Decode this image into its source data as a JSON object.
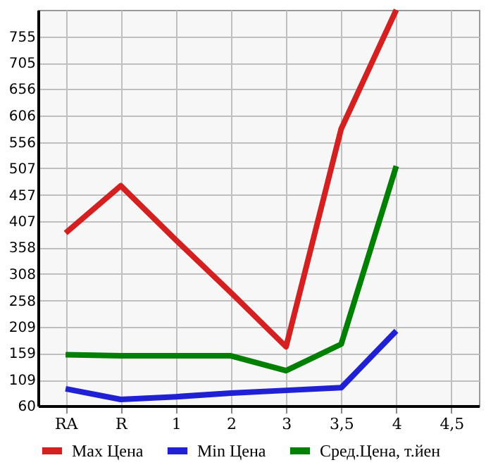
{
  "chart_data": {
    "type": "line",
    "categories": [
      "RA",
      "R",
      "1",
      "2",
      "3",
      "3,5",
      "4",
      "4,5"
    ],
    "series": [
      {
        "name": "Max Цена",
        "color": "#d42020",
        "values": [
          385,
          474,
          372,
          273,
          171,
          581,
          805,
          null
        ]
      },
      {
        "name": "Min Цена",
        "color": "#2020d4",
        "values": [
          92,
          72,
          77,
          84,
          89,
          94,
          201,
          null
        ]
      },
      {
        "name": "Сред.Цена, т.йен",
        "color": "#008000",
        "values": [
          156,
          154,
          154,
          154,
          126,
          176,
          511,
          null
        ]
      }
    ],
    "ylim": [
      60,
      805
    ],
    "yticks": [
      60,
      109,
      159,
      209,
      258,
      308,
      358,
      407,
      457,
      507,
      556,
      606,
      656,
      705,
      755
    ],
    "grid": true,
    "legend": "bottom",
    "marker": "none",
    "line_style": "solid"
  }
}
